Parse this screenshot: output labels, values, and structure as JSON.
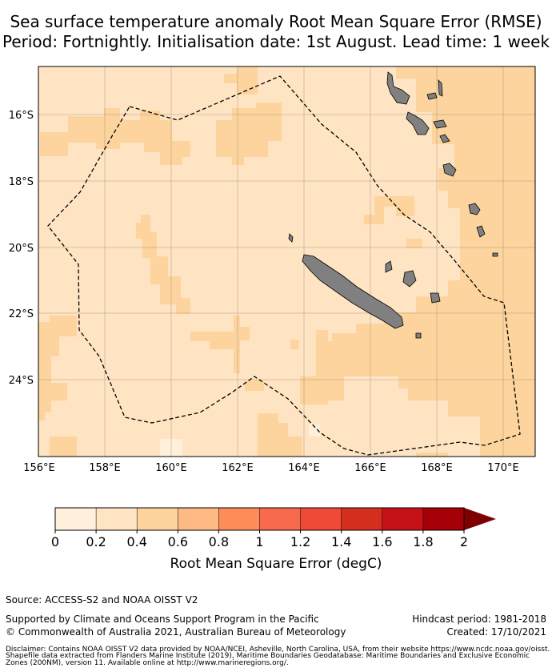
{
  "title": {
    "line1": "Sea surface temperature anomaly Root Mean Square Error (RMSE)",
    "line2": "Period: Fortnightly. Initialisation date: 1st August. Lead time: 1 week"
  },
  "map": {
    "lon_ticks": [
      "156°E",
      "158°E",
      "160°E",
      "162°E",
      "164°E",
      "166°E",
      "168°E",
      "170°E"
    ],
    "lat_ticks": [
      "16°S",
      "18°S",
      "20°S",
      "22°S",
      "24°S"
    ],
    "lon_range": [
      156,
      171
    ],
    "lat_range": [
      -26.3,
      -14.6
    ],
    "land_color": "#808080",
    "boundary_style": "dashed",
    "colors": {
      "0-0.2": "#fff0dc",
      "0.2-0.4": "#ffe4c3",
      "0.4-0.6": "#fdd49d"
    }
  },
  "colorbar": {
    "ticks": [
      "0",
      "0.2",
      "0.4",
      "0.6",
      "0.8",
      "1",
      "1.2",
      "1.4",
      "1.6",
      "1.8",
      "2"
    ],
    "colors": [
      "#fff0dc",
      "#ffe4c3",
      "#fdd49d",
      "#fdba83",
      "#fc8d59",
      "#f76a4d",
      "#ef4a38",
      "#d42e1f",
      "#c61119",
      "#a50008"
    ],
    "extend_color": "#7f0000",
    "label": "Root Mean Square Error (degC)"
  },
  "footer": {
    "source": "Source: ACCESS-S2 and NOAA OISST V2",
    "supported": "Supported by Climate and Oceans Support Program in the Pacific",
    "copyright": "© Commonwealth of Australia 2021, Australian Bureau of Meteorology",
    "hindcast": "Hindcast period: 1981-2018",
    "created": "Created: 17/10/2021",
    "disclaimer1": "Disclaimer: Contains NOAA OISST V2 data provided by NOAA/NCEI, Asheville, North Carolina, USA, from their website https://www.ncdc.noaa.gov/oisst.",
    "disclaimer2": "Shapefile data extracted from Flanders Marine Institute (2019), Maritime Boundaries Geodatabase: Maritime Boundaries and Exclusive Economic",
    "disclaimer3": "Zones (200NM), version 11. Available online at http://www.marineregions.org/."
  }
}
